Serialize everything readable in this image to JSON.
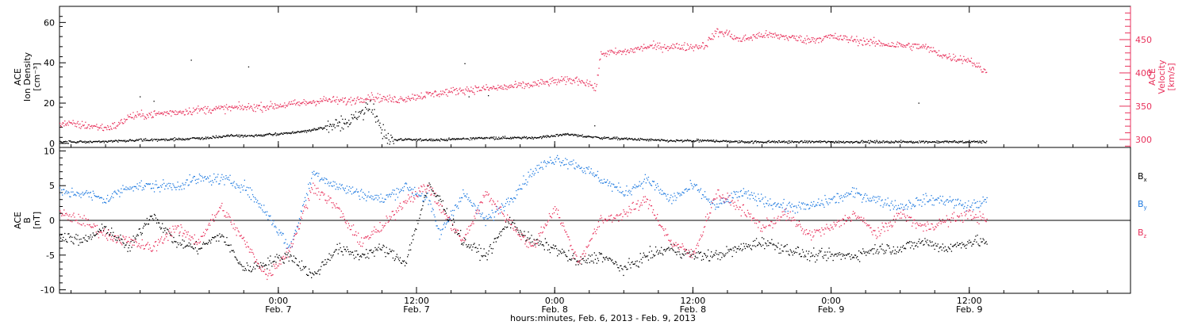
{
  "figure": {
    "xlabel": "hours:minutes, Feb.  6, 2013 - Feb.  9, 2013"
  },
  "x_ticks": [
    {
      "time": "0:00",
      "date": "Feb. 7",
      "hours": 24
    },
    {
      "time": "12:00",
      "date": "Feb. 7",
      "hours": 36
    },
    {
      "time": "0:00",
      "date": "Feb. 8",
      "hours": 48
    },
    {
      "time": "12:00",
      "date": "Feb. 8",
      "hours": 60
    },
    {
      "time": "0:00",
      "date": "Feb. 9",
      "hours": 72
    },
    {
      "time": "12:00",
      "date": "Feb. 9",
      "hours": 84
    }
  ],
  "chart_data": [
    {
      "type": "scatter",
      "panel": "top",
      "x_units": "hours since Feb. 6, 2013 00:00",
      "xlim": [
        5,
        98
      ],
      "left_axis": {
        "label": [
          "ACE",
          "Ion Density",
          "[cm⁻³]"
        ],
        "ylim": [
          -2,
          68
        ],
        "ticks": [
          0,
          20,
          40,
          60
        ]
      },
      "right_axis": {
        "label": [
          "ACE",
          "Velocity",
          "[km/s]"
        ],
        "ylim": [
          288,
          500
        ],
        "ticks": [
          300,
          350,
          400,
          450
        ],
        "color": "#e8325c"
      },
      "series": [
        {
          "axis": "left",
          "color": "#000000",
          "x": [
            5,
            8,
            10,
            12,
            14,
            16,
            18,
            20,
            22,
            24,
            26,
            28,
            30,
            31,
            32,
            33,
            34,
            36,
            38,
            40,
            42,
            44,
            46,
            48,
            49,
            50,
            52,
            54,
            56,
            58,
            60,
            62,
            64,
            66,
            68,
            70,
            72,
            76,
            80,
            84,
            85.5
          ],
          "y": [
            1,
            1,
            1.5,
            2,
            2,
            2.5,
            3,
            4,
            4,
            5,
            6,
            8,
            11,
            15,
            20,
            5,
            2,
            2,
            2,
            2.5,
            3,
            3,
            3,
            4,
            5,
            4,
            3,
            2.5,
            2,
            1.5,
            1.5,
            1.5,
            1,
            1,
            1,
            1,
            1,
            1,
            1,
            1,
            1
          ]
        },
        {
          "axis": "right",
          "color": "#e8325c",
          "x": [
            5,
            7,
            9,
            10,
            11,
            14,
            17,
            20,
            23,
            26,
            28,
            30,
            32,
            34,
            37,
            40,
            43,
            46,
            48,
            50,
            51,
            51.5,
            52,
            54,
            56,
            58,
            60,
            61,
            62,
            63,
            64,
            66,
            68,
            70,
            72,
            74,
            76,
            78,
            80,
            82,
            84,
            85.5
          ],
          "y": [
            325,
            322,
            318,
            322,
            335,
            340,
            345,
            348,
            350,
            355,
            360,
            358,
            365,
            360,
            368,
            375,
            378,
            383,
            388,
            390,
            385,
            375,
            430,
            432,
            440,
            440,
            440,
            442,
            462,
            460,
            450,
            458,
            455,
            450,
            455,
            450,
            445,
            442,
            440,
            425,
            420,
            400
          ]
        }
      ]
    },
    {
      "type": "scatter",
      "panel": "bottom",
      "x_units": "hours since Feb. 6, 2013 00:00",
      "xlim": [
        5,
        98
      ],
      "left_axis": {
        "label": [
          "ACE",
          "B",
          "[nT]"
        ],
        "ylim": [
          -10.5,
          10.5
        ],
        "ticks": [
          -10,
          -5,
          0,
          5,
          10
        ]
      },
      "zero_line": true,
      "legend": {
        "placement": "right",
        "entries": [
          "Bx",
          "By",
          "Bz"
        ]
      },
      "series": [
        {
          "name": "Bx",
          "color": "#000000",
          "x": [
            5,
            7,
            9,
            11,
            13,
            15,
            17,
            19,
            21,
            23,
            25,
            27,
            29,
            31,
            33,
            35,
            37,
            38,
            40,
            42,
            44,
            46,
            48,
            50,
            52,
            54,
            56,
            58,
            60,
            62,
            64,
            66,
            68,
            70,
            72,
            74,
            76,
            78,
            80,
            82,
            84,
            85.5
          ],
          "y": [
            -2,
            -3,
            -1,
            -4,
            1,
            -3,
            -4,
            -2,
            -7,
            -6,
            -5,
            -8,
            -4,
            -5,
            -4,
            -6,
            5,
            3,
            -3,
            -5,
            0,
            -3,
            -4,
            -6,
            -5,
            -7,
            -5,
            -4,
            -5,
            -5,
            -4,
            -3,
            -4,
            -5,
            -5,
            -5,
            -4,
            -4,
            -3,
            -4,
            -3,
            -3
          ]
        },
        {
          "name": "By",
          "color": "#1f7ae0",
          "x": [
            5,
            7,
            9,
            11,
            13,
            15,
            17,
            19,
            21,
            23,
            25,
            27,
            29,
            31,
            33,
            35,
            37,
            38,
            40,
            42,
            44,
            46,
            48,
            50,
            52,
            54,
            56,
            58,
            60,
            62,
            64,
            66,
            68,
            70,
            72,
            74,
            76,
            78,
            80,
            82,
            84,
            85.5
          ],
          "y": [
            4,
            4,
            3,
            5,
            5,
            5,
            6,
            6,
            5,
            1,
            -4,
            7,
            5,
            4,
            3,
            5,
            3,
            -2,
            4,
            0,
            3,
            7,
            9,
            8,
            6,
            4,
            6,
            3,
            5,
            2,
            4,
            3,
            2,
            2,
            3,
            4,
            3,
            2,
            3,
            3,
            2,
            3
          ]
        },
        {
          "name": "Bz",
          "color": "#e8325c",
          "x": [
            5,
            7,
            9,
            11,
            13,
            15,
            17,
            19,
            21,
            23,
            25,
            27,
            29,
            31,
            33,
            35,
            37,
            38,
            40,
            42,
            44,
            46,
            48,
            50,
            52,
            54,
            56,
            58,
            60,
            62,
            64,
            66,
            68,
            70,
            72,
            74,
            76,
            78,
            80,
            82,
            84,
            85.5
          ],
          "y": [
            1,
            0,
            -2,
            -3,
            -4,
            -1,
            -3,
            2,
            -3,
            -8,
            -4,
            5,
            2,
            -3,
            -1,
            3,
            5,
            2,
            -3,
            4,
            0,
            -4,
            2,
            -6,
            0,
            1,
            3,
            -3,
            -5,
            4,
            2,
            -1,
            1,
            -2,
            -1,
            1,
            -2,
            1,
            -1,
            0,
            1,
            0
          ]
        }
      ]
    }
  ]
}
